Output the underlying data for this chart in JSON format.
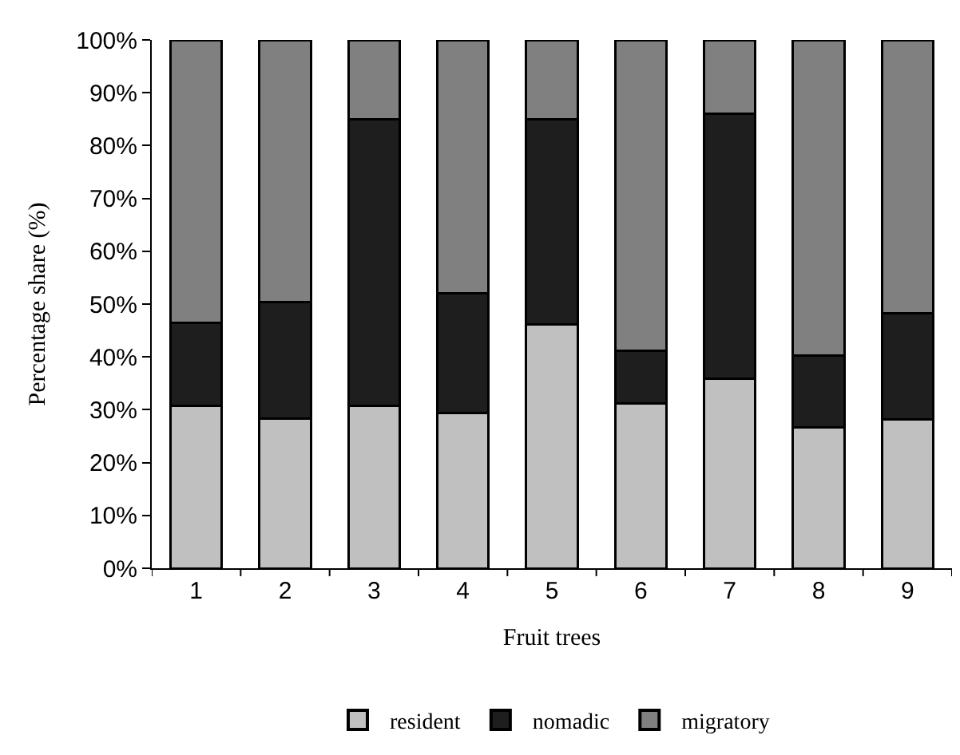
{
  "chart_data": {
    "type": "bar",
    "stacked": true,
    "xlabel": "Fruit trees",
    "ylabel": "Percentage share (%)",
    "categories": [
      "1",
      "2",
      "3",
      "4",
      "5",
      "6",
      "7",
      "8",
      "9"
    ],
    "series": [
      {
        "name": "resident",
        "color": "#c0c0c0",
        "values": [
          30.8,
          28.4,
          30.8,
          29.4,
          46.2,
          31.2,
          35.9,
          26.7,
          28.2
        ]
      },
      {
        "name": "nomadic",
        "color": "#1e1e1e",
        "values": [
          15.7,
          22.0,
          54.2,
          22.7,
          38.8,
          9.9,
          50.1,
          13.6,
          20.0
        ]
      },
      {
        "name": "migratory",
        "color": "#808080",
        "values": [
          53.5,
          49.6,
          15.0,
          47.9,
          15.0,
          58.9,
          14.0,
          59.7,
          51.8
        ]
      }
    ],
    "ylim": [
      0,
      100
    ],
    "yticks": [
      {
        "value": 0,
        "label": "0%"
      },
      {
        "value": 10,
        "label": "10%"
      },
      {
        "value": 20,
        "label": "20%"
      },
      {
        "value": 30,
        "label": "30%"
      },
      {
        "value": 40,
        "label": "40%"
      },
      {
        "value": 50,
        "label": "50%"
      },
      {
        "value": 60,
        "label": "60%"
      },
      {
        "value": 70,
        "label": "70%"
      },
      {
        "value": 80,
        "label": "80%"
      },
      {
        "value": 90,
        "label": "90%"
      },
      {
        "value": 100,
        "label": "100%"
      }
    ],
    "grid": false,
    "legend": "bottom"
  }
}
